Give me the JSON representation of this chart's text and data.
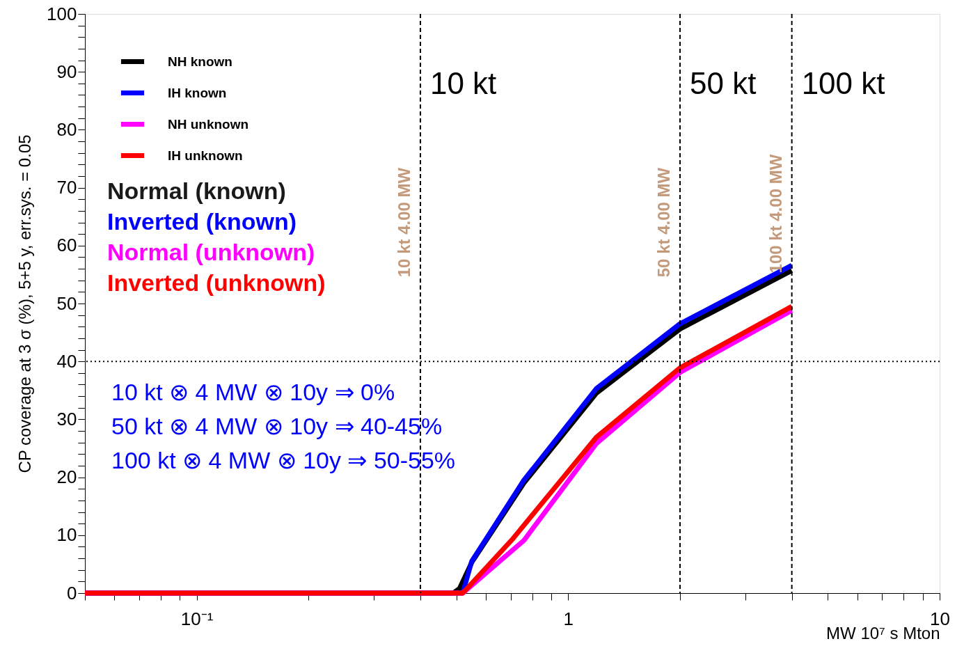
{
  "chart_data": {
    "type": "line",
    "xlabel": "MW 10⁷ s Mton",
    "ylabel": "CP coverage at 3 σ (%), 5+5 y, err.sys. = 0.05",
    "log": "x",
    "grid": false,
    "legend": "top left",
    "line_style": "solid",
    "marker": "none",
    "xlim": [
      0.05,
      10
    ],
    "ylim": [
      0,
      100
    ],
    "xticks": [
      {
        "value": 0.05,
        "label": null
      },
      {
        "value": 0.06,
        "label": null
      },
      {
        "value": 0.07,
        "label": null
      },
      {
        "value": 0.08,
        "label": null
      },
      {
        "value": 0.09,
        "label": null
      },
      {
        "value": 0.1,
        "label": "10⁻¹"
      },
      {
        "value": 0.2,
        "label": null
      },
      {
        "value": 0.3,
        "label": null
      },
      {
        "value": 0.4,
        "label": null
      },
      {
        "value": 0.5,
        "label": null
      },
      {
        "value": 0.6,
        "label": null
      },
      {
        "value": 0.7,
        "label": null
      },
      {
        "value": 0.8,
        "label": null
      },
      {
        "value": 0.9,
        "label": null
      },
      1,
      {
        "value": 2,
        "label": null
      },
      {
        "value": 3,
        "label": null
      },
      {
        "value": 4,
        "label": null
      },
      {
        "value": 5,
        "label": null
      },
      {
        "value": 6,
        "label": null
      },
      {
        "value": 7,
        "label": null
      },
      {
        "value": 8,
        "label": null
      },
      {
        "value": 9,
        "label": null
      },
      10
    ],
    "yticks": [
      0,
      {
        "value": 2,
        "label": null
      },
      {
        "value": 4,
        "label": null
      },
      {
        "value": 6,
        "label": null
      },
      {
        "value": 8,
        "label": null
      },
      10,
      {
        "value": 12,
        "label": null
      },
      {
        "value": 14,
        "label": null
      },
      {
        "value": 16,
        "label": null
      },
      {
        "value": 18,
        "label": null
      },
      20,
      {
        "value": 22,
        "label": null
      },
      {
        "value": 24,
        "label": null
      },
      {
        "value": 26,
        "label": null
      },
      {
        "value": 28,
        "label": null
      },
      30,
      {
        "value": 32,
        "label": null
      },
      {
        "value": 34,
        "label": null
      },
      {
        "value": 36,
        "label": null
      },
      {
        "value": 38,
        "label": null
      },
      40,
      {
        "value": 42,
        "label": null
      },
      {
        "value": 44,
        "label": null
      },
      {
        "value": 46,
        "label": null
      },
      {
        "value": 48,
        "label": null
      },
      50,
      {
        "value": 52,
        "label": null
      },
      {
        "value": 54,
        "label": null
      },
      {
        "value": 56,
        "label": null
      },
      {
        "value": 58,
        "label": null
      },
      60,
      {
        "value": 62,
        "label": null
      },
      {
        "value": 64,
        "label": null
      },
      {
        "value": 66,
        "label": null
      },
      {
        "value": 68,
        "label": null
      },
      70,
      {
        "value": 72,
        "label": null
      },
      {
        "value": 74,
        "label": null
      },
      {
        "value": 76,
        "label": null
      },
      {
        "value": 78,
        "label": null
      },
      80,
      {
        "value": 82,
        "label": null
      },
      {
        "value": 84,
        "label": null
      },
      {
        "value": 86,
        "label": null
      },
      {
        "value": 88,
        "label": null
      },
      90,
      {
        "value": 92,
        "label": null
      },
      {
        "value": 94,
        "label": null
      },
      {
        "value": 96,
        "label": null
      },
      {
        "value": 98,
        "label": null
      },
      100
    ],
    "series": [
      {
        "name": "NH known",
        "color": "#000000",
        "x": [
          0.05,
          0.49,
          0.51,
          0.55,
          0.76,
          1.19,
          2,
          4
        ],
        "values": [
          0,
          0,
          0.8,
          5.3,
          19,
          34.5,
          45.6,
          55.7
        ]
      },
      {
        "name": "IH known",
        "color": "#0000ff",
        "x": [
          0.05,
          0.52,
          0.55,
          0.76,
          1.19,
          2,
          4
        ],
        "values": [
          0,
          0,
          5.5,
          19.5,
          35.3,
          46.5,
          56.6
        ]
      },
      {
        "name": "NH unknown",
        "color": "#ff00ff",
        "x": [
          0.05,
          0.52,
          0.76,
          1.19,
          2,
          4
        ],
        "values": [
          0,
          0,
          9.1,
          25.8,
          38.1,
          48.8
        ]
      },
      {
        "name": "IH unknown",
        "color": "#ff0000",
        "x": [
          0.05,
          0.52,
          0.71,
          1.19,
          2,
          4
        ],
        "values": [
          0,
          0,
          9.4,
          26.9,
          38.9,
          49.5
        ]
      }
    ],
    "ref_lines": [
      {
        "axis": "x",
        "value": 0.4,
        "label": "10 kt",
        "line_style": "dashed",
        "color": "#000000"
      },
      {
        "axis": "x",
        "value": 2,
        "label": "50 kt",
        "line_style": "dashed",
        "color": "#000000"
      },
      {
        "axis": "x",
        "value": 4,
        "label": "100 kt",
        "line_style": "dashed",
        "color": "#000000"
      },
      {
        "axis": "y",
        "value": 40,
        "line_style": "dotted",
        "color": "#000000"
      }
    ],
    "annotations": [
      "Normal (known)",
      "Inverted (known)",
      "Normal (unknown)",
      "Inverted (unknown)",
      "10 kt  ⊗ 4 MW ⊗ 10y ⇒ 0%",
      "50 kt  ⊗ 4 MW ⊗ 10y ⇒ 40-45%",
      "100 kt  ⊗ 4 MW ⊗ 10y ⇒ 50-55%",
      {
        "text": "10 kt 4.00 MW",
        "x": 0.4,
        "y": 64
      },
      {
        "text": "50 kt 4.00 MW",
        "x": 2,
        "y": 64
      },
      {
        "text": "100 kt 4.00 MW",
        "x": 4,
        "y": 65.5
      }
    ]
  }
}
